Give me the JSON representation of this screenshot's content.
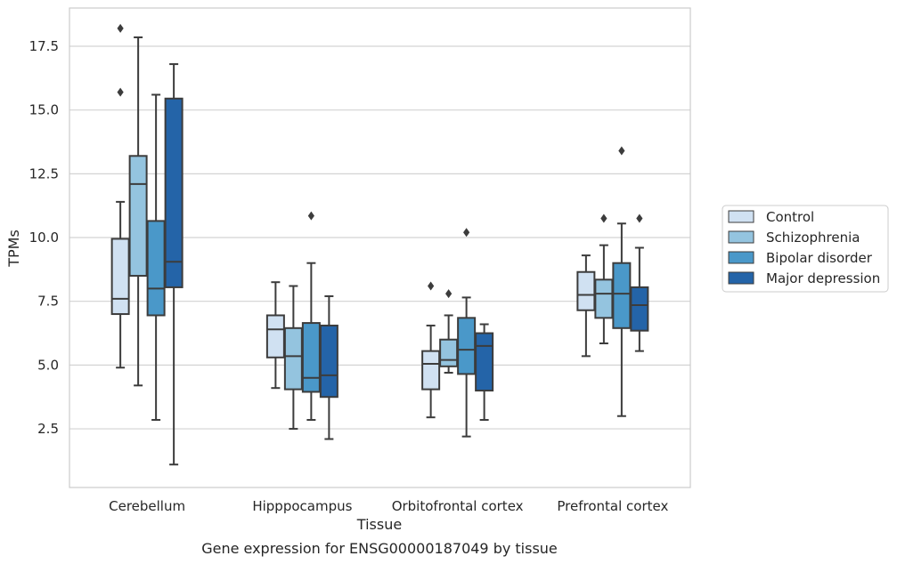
{
  "chart_data": {
    "type": "box",
    "title": "Gene expression for ENSG00000187049 by tissue",
    "xlabel": "Tissue",
    "ylabel": "TPMs",
    "ylim": [
      0.2,
      19.0
    ],
    "yticks": [
      "2.5",
      "5.0",
      "7.5",
      "10.0",
      "12.5",
      "15.0",
      "17.5"
    ],
    "ytick_values": [
      2.5,
      5.0,
      7.5,
      10.0,
      12.5,
      15.0,
      17.5
    ],
    "grid": "horizontal",
    "legend_position": "center-right",
    "categories": [
      "Cerebellum",
      "Hipppocampus",
      "Orbitofrontal cortex",
      "Prefrontal cortex"
    ],
    "series": [
      {
        "name": "Control",
        "color": "#d0e1f2",
        "boxes": [
          {
            "whislo": 4.9,
            "q1": 7.0,
            "med": 7.6,
            "q3": 9.95,
            "whishi": 11.4,
            "fliers": [
              15.7,
              18.2
            ]
          },
          {
            "whislo": 4.1,
            "q1": 5.3,
            "med": 6.4,
            "q3": 6.95,
            "whishi": 8.25,
            "fliers": []
          },
          {
            "whislo": 2.95,
            "q1": 4.05,
            "med": 5.05,
            "q3": 5.55,
            "whishi": 6.55,
            "fliers": [
              8.1
            ]
          },
          {
            "whislo": 5.35,
            "q1": 7.15,
            "med": 7.75,
            "q3": 8.65,
            "whishi": 9.3,
            "fliers": []
          }
        ]
      },
      {
        "name": "Schizophrenia",
        "color": "#94c4df",
        "boxes": [
          {
            "whislo": 4.2,
            "q1": 8.5,
            "med": 12.1,
            "q3": 13.2,
            "whishi": 17.85,
            "fliers": []
          },
          {
            "whislo": 2.5,
            "q1": 4.05,
            "med": 5.35,
            "q3": 6.45,
            "whishi": 8.1,
            "fliers": []
          },
          {
            "whislo": 4.7,
            "q1": 4.95,
            "med": 5.2,
            "q3": 6.0,
            "whishi": 6.95,
            "fliers": [
              7.8
            ]
          },
          {
            "whislo": 5.85,
            "q1": 6.85,
            "med": 7.8,
            "q3": 8.35,
            "whishi": 9.7,
            "fliers": [
              10.75
            ]
          }
        ]
      },
      {
        "name": "Bipolar disorder",
        "color": "#4a98c9",
        "boxes": [
          {
            "whislo": 2.85,
            "q1": 6.95,
            "med": 8.0,
            "q3": 10.65,
            "whishi": 15.6,
            "fliers": []
          },
          {
            "whislo": 2.85,
            "q1": 3.95,
            "med": 4.5,
            "q3": 6.65,
            "whishi": 9.0,
            "fliers": [
              10.85
            ]
          },
          {
            "whislo": 2.2,
            "q1": 4.65,
            "med": 5.6,
            "q3": 6.85,
            "whishi": 7.65,
            "fliers": [
              10.2
            ]
          },
          {
            "whislo": 3.0,
            "q1": 6.45,
            "med": 7.8,
            "q3": 9.0,
            "whishi": 10.55,
            "fliers": [
              13.4
            ]
          }
        ]
      },
      {
        "name": "Major depression",
        "color": "#2464a8",
        "boxes": [
          {
            "whislo": 1.1,
            "q1": 8.05,
            "med": 9.05,
            "q3": 15.45,
            "whishi": 16.8,
            "fliers": []
          },
          {
            "whislo": 2.1,
            "q1": 3.75,
            "med": 4.6,
            "q3": 6.55,
            "whishi": 7.7,
            "fliers": []
          },
          {
            "whislo": 2.85,
            "q1": 4.0,
            "med": 5.75,
            "q3": 6.25,
            "whishi": 6.6,
            "fliers": []
          },
          {
            "whislo": 5.55,
            "q1": 6.35,
            "med": 7.35,
            "q3": 8.05,
            "whishi": 9.6,
            "fliers": [
              10.75
            ]
          }
        ]
      }
    ]
  },
  "colors": {
    "grid": "#d3d3d3",
    "frame": "#cccccc",
    "box_edge": "#3c3c3c",
    "legend_border": "#cccccc"
  }
}
